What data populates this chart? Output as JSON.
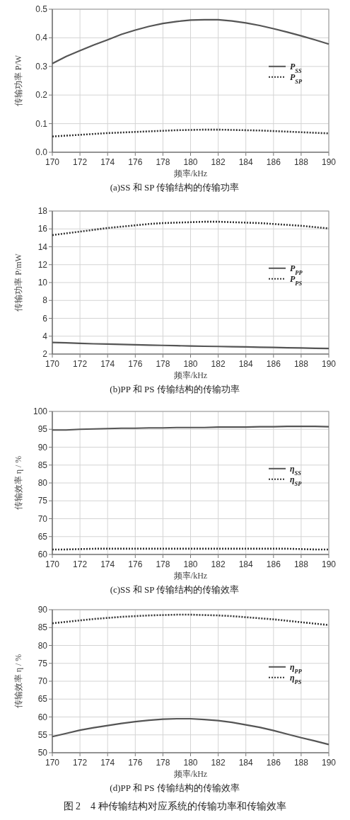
{
  "chart_data": [
    {
      "type": "line",
      "title": "(a)SS 和 SP 传输结构的传输功率",
      "xlabel": "频率/kHz",
      "ylabel": "传输功率 P/W",
      "x": [
        170,
        171,
        172,
        173,
        174,
        175,
        176,
        177,
        178,
        179,
        180,
        181,
        182,
        183,
        184,
        185,
        186,
        187,
        188,
        189,
        190
      ],
      "series": [
        {
          "name": "P$_{SS}$",
          "color": "#555555",
          "line_style": "solid",
          "values": [
            0.31,
            0.335,
            0.355,
            0.375,
            0.393,
            0.412,
            0.427,
            0.44,
            0.45,
            0.457,
            0.462,
            0.463,
            0.463,
            0.459,
            0.452,
            0.443,
            0.432,
            0.42,
            0.407,
            0.393,
            0.378
          ]
        },
        {
          "name": "P$_{SP}$",
          "color": "#333333",
          "line_style": "dotted",
          "values": [
            0.055,
            0.058,
            0.061,
            0.064,
            0.067,
            0.069,
            0.071,
            0.073,
            0.075,
            0.077,
            0.078,
            0.079,
            0.079,
            0.078,
            0.077,
            0.076,
            0.074,
            0.072,
            0.07,
            0.068,
            0.066
          ]
        }
      ],
      "xlim": [
        170,
        190
      ],
      "xticks": [
        170,
        172,
        174,
        176,
        178,
        180,
        182,
        184,
        186,
        188,
        190
      ],
      "ylim": [
        0,
        0.5
      ],
      "yticks": [
        {
          "value": 0,
          "label": "0.0"
        },
        0.1,
        0.2,
        0.3,
        0.4,
        0.5
      ],
      "grid": true,
      "legend": "right"
    },
    {
      "type": "line",
      "title": "(b)PP 和 PS 传输结构的传输功率",
      "xlabel": "频率/kHz",
      "ylabel": "传输功率 P/mW",
      "x": [
        170,
        171,
        172,
        173,
        174,
        175,
        176,
        177,
        178,
        179,
        180,
        181,
        182,
        183,
        184,
        185,
        186,
        187,
        188,
        189,
        190
      ],
      "series": [
        {
          "name": "P$_{PP}$",
          "color": "#555555",
          "line_style": "solid",
          "values": [
            3.3,
            3.25,
            3.2,
            3.15,
            3.12,
            3.08,
            3.04,
            3.0,
            2.97,
            2.94,
            2.9,
            2.87,
            2.85,
            2.82,
            2.8,
            2.77,
            2.74,
            2.71,
            2.68,
            2.65,
            2.62
          ]
        },
        {
          "name": "P$_{PS}$",
          "color": "#333333",
          "line_style": "dotted",
          "values": [
            15.3,
            15.5,
            15.7,
            15.9,
            16.1,
            16.25,
            16.4,
            16.55,
            16.65,
            16.7,
            16.75,
            16.8,
            16.8,
            16.75,
            16.7,
            16.65,
            16.55,
            16.45,
            16.35,
            16.2,
            16.05
          ]
        }
      ],
      "xlim": [
        170,
        190
      ],
      "xticks": [
        170,
        172,
        174,
        176,
        178,
        180,
        182,
        184,
        186,
        188,
        190
      ],
      "ylim": [
        2,
        18
      ],
      "yticks": [
        2,
        4,
        6,
        8,
        10,
        12,
        14,
        16,
        18
      ],
      "grid": true,
      "legend": "right"
    },
    {
      "type": "line",
      "title": "(c)SS 和 SP 传输结构的传输效率",
      "xlabel": "频率/kHz",
      "ylabel": "传输效率 η / %",
      "x": [
        170,
        171,
        172,
        173,
        174,
        175,
        176,
        177,
        178,
        179,
        180,
        181,
        182,
        183,
        184,
        185,
        186,
        187,
        188,
        189,
        190
      ],
      "series": [
        {
          "name": "η$_{SS}$",
          "color": "#555555",
          "line_style": "solid",
          "values": [
            94.8,
            94.8,
            95.0,
            95.1,
            95.2,
            95.3,
            95.3,
            95.4,
            95.4,
            95.5,
            95.5,
            95.5,
            95.6,
            95.6,
            95.6,
            95.7,
            95.7,
            95.8,
            95.8,
            95.8,
            95.7
          ]
        },
        {
          "name": "η$_{SP}$",
          "color": "#333333",
          "line_style": "dotted",
          "values": [
            61.4,
            61.4,
            61.5,
            61.6,
            61.6,
            61.6,
            61.6,
            61.6,
            61.6,
            61.6,
            61.6,
            61.6,
            61.6,
            61.6,
            61.6,
            61.6,
            61.6,
            61.6,
            61.5,
            61.4,
            61.4
          ]
        }
      ],
      "xlim": [
        170,
        190
      ],
      "xticks": [
        170,
        172,
        174,
        176,
        178,
        180,
        182,
        184,
        186,
        188,
        190
      ],
      "ylim": [
        60,
        100
      ],
      "yticks": [
        60,
        65,
        70,
        75,
        80,
        85,
        90,
        95,
        100
      ],
      "grid": true,
      "legend": "right"
    },
    {
      "type": "line",
      "title": "(d)PP 和 PS 传输结构的传输效率",
      "xlabel": "频率/kHz",
      "ylabel": "传输效率 η / %",
      "x": [
        170,
        171,
        172,
        173,
        174,
        175,
        176,
        177,
        178,
        179,
        180,
        181,
        182,
        183,
        184,
        185,
        186,
        187,
        188,
        189,
        190
      ],
      "series": [
        {
          "name": "η$_{PP}$",
          "color": "#555555",
          "line_style": "solid",
          "values": [
            54.5,
            55.4,
            56.3,
            57.0,
            57.6,
            58.2,
            58.7,
            59.1,
            59.4,
            59.5,
            59.5,
            59.3,
            59.0,
            58.5,
            57.8,
            57.1,
            56.2,
            55.2,
            54.2,
            53.3,
            52.3
          ]
        },
        {
          "name": "η$_{PS}$",
          "color": "#333333",
          "line_style": "dotted",
          "values": [
            86.2,
            86.6,
            87.0,
            87.4,
            87.7,
            88.0,
            88.2,
            88.4,
            88.5,
            88.6,
            88.6,
            88.5,
            88.4,
            88.2,
            87.9,
            87.6,
            87.3,
            86.9,
            86.5,
            86.1,
            85.7
          ]
        }
      ],
      "xlim": [
        170,
        190
      ],
      "xticks": [
        170,
        172,
        174,
        176,
        178,
        180,
        182,
        184,
        186,
        188,
        190
      ],
      "ylim": [
        50,
        90
      ],
      "yticks": [
        50,
        55,
        60,
        65,
        70,
        75,
        80,
        85,
        90
      ],
      "grid": true,
      "legend": "right",
      "annotations": [
        "图 2　4 种传输结构对应系统的传输功率和传输效率"
      ]
    }
  ]
}
